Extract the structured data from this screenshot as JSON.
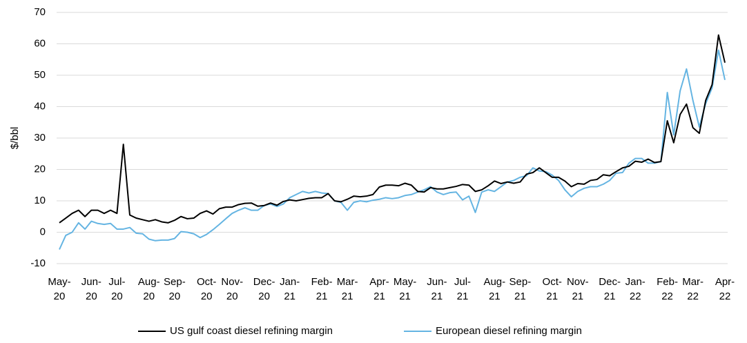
{
  "chart_data": {
    "type": "line",
    "y_label": "$/bbl",
    "categories": [
      "May-\n20",
      null,
      null,
      null,
      null,
      "Jun-\n20",
      null,
      null,
      null,
      "Jul-\n20",
      null,
      null,
      null,
      null,
      "Aug-\n20",
      null,
      null,
      null,
      "Sep-\n20",
      null,
      null,
      null,
      null,
      "Oct-\n20",
      null,
      null,
      null,
      "Nov-\n20",
      null,
      null,
      null,
      null,
      "Dec-\n20",
      null,
      null,
      null,
      "Jan-\n21",
      null,
      null,
      null,
      null,
      "Feb-\n21",
      null,
      null,
      null,
      "Mar-\n21",
      null,
      null,
      null,
      null,
      "Apr-\n21",
      null,
      null,
      null,
      "May-\n21",
      null,
      null,
      null,
      null,
      "Jun-\n21",
      null,
      null,
      null,
      "Jul-\n21",
      null,
      null,
      null,
      null,
      "Aug-\n21",
      null,
      null,
      null,
      "Sep-\n21",
      null,
      null,
      null,
      null,
      "Oct-\n21",
      null,
      null,
      null,
      "Nov-\n21",
      null,
      null,
      null,
      null,
      "Dec-\n21",
      null,
      null,
      null,
      "Jan-\n22",
      null,
      null,
      null,
      null,
      "Feb-\n22",
      null,
      null,
      null,
      "Mar-\n22",
      null,
      null,
      null,
      null,
      "Apr-\n22"
    ],
    "series": [
      {
        "name": "US gulf coast diesel refining margin",
        "color": "#000000",
        "values": [
          3,
          4.5,
          6,
          7,
          5,
          7,
          7,
          6,
          7,
          6,
          28,
          5.5,
          4.5,
          4,
          3.5,
          4,
          3.3,
          3,
          3.8,
          5,
          4.3,
          4.5,
          6,
          6.8,
          5.8,
          7.5,
          8,
          8,
          8.8,
          9.2,
          9.3,
          8.3,
          8.5,
          9.3,
          8.6,
          9.8,
          10.3,
          10,
          10.4,
          10.8,
          11,
          11,
          12.3,
          10,
          9.7,
          10.5,
          11.5,
          11.3,
          11.5,
          12,
          14.4,
          15,
          15,
          14.8,
          15.6,
          15,
          13,
          12.8,
          14.2,
          13.8,
          13.8,
          14.2,
          14.6,
          15.2,
          15,
          13,
          13.5,
          14.8,
          16.3,
          15.5,
          16,
          15.6,
          16,
          18.5,
          19,
          20.5,
          19,
          17.5,
          17.5,
          16.3,
          14.5,
          15.5,
          15.3,
          16.5,
          16.8,
          18.3,
          18,
          19.3,
          20.5,
          21,
          22.6,
          22.3,
          23.3,
          22.2,
          22.5,
          35.5,
          28.5,
          37.5,
          40.8,
          33.3,
          31.5,
          42,
          47,
          62.8,
          54
        ]
      },
      {
        "name": "European diesel refining margin",
        "color": "#64b4e2",
        "values": [
          -5.5,
          -1,
          0,
          3,
          1,
          3.5,
          2.8,
          2.5,
          2.8,
          1,
          1,
          1.5,
          -0.3,
          -0.5,
          -2.2,
          -2.7,
          -2.5,
          -2.5,
          -2,
          0.2,
          0,
          -0.5,
          -1.7,
          -0.7,
          0.8,
          2.5,
          4.3,
          6,
          7,
          7.8,
          7,
          7,
          8.5,
          9,
          8.2,
          9,
          11,
          12,
          13,
          12.5,
          13,
          12.5,
          12.3,
          10,
          9.5,
          7,
          9.5,
          10,
          9.7,
          10.2,
          10.5,
          11,
          10.7,
          11,
          11.7,
          12,
          12.8,
          13.5,
          14.5,
          12.8,
          12,
          12.6,
          12.8,
          10.3,
          11.5,
          6.3,
          12.8,
          13.5,
          13,
          14.5,
          16,
          16.5,
          17.5,
          18,
          20.5,
          19.5,
          19.3,
          18.2,
          16.5,
          13.5,
          11.3,
          13,
          14,
          14.5,
          14.5,
          15.3,
          16.5,
          18.8,
          19,
          22,
          23.5,
          23.5,
          22,
          22,
          22.5,
          44.5,
          31,
          45,
          52,
          42,
          33.5,
          41,
          46,
          58,
          48.5
        ]
      }
    ],
    "ylim": [
      -10,
      70
    ],
    "yticks": [
      -10,
      0,
      10,
      20,
      30,
      40,
      50,
      60,
      70
    ],
    "grid": true,
    "legend": "bottom"
  }
}
